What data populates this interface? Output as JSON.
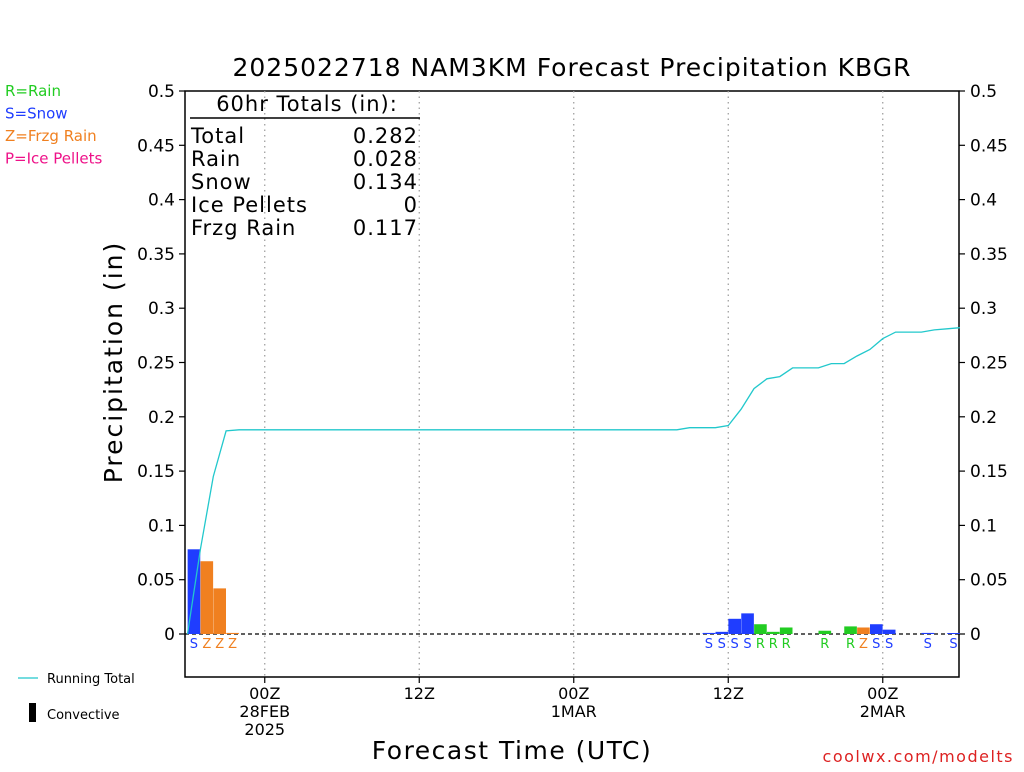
{
  "colors": {
    "rain": "#22cc22",
    "snow": "#1f3dff",
    "frzg_rain": "#f08020",
    "ice_pellets": "#ee1188",
    "running_total": "#22c8cc",
    "watermark": "#dd2222",
    "grid": "#999999"
  },
  "legend_types": [
    {
      "label": "R=Rain",
      "color": "#22cc22"
    },
    {
      "label": "S=Snow",
      "color": "#1f3dff"
    },
    {
      "label": "Z=Frzg Rain",
      "color": "#f08020"
    },
    {
      "label": "P=Ice Pellets",
      "color": "#ee1188"
    }
  ],
  "legend_bottom": {
    "running_total": "Running Total",
    "convective": "Convective"
  },
  "totals_box": {
    "title": "60hr Totals (in):",
    "rows": [
      {
        "label": "Total",
        "value": "0.282"
      },
      {
        "label": "Rain",
        "value": "0.028"
      },
      {
        "label": "Snow",
        "value": "0.134"
      },
      {
        "label": "Ice Pellets",
        "value": "0"
      },
      {
        "label": "Frzg Rain",
        "value": "0.117"
      }
    ]
  },
  "watermark": "coolwx.com/modelts",
  "chart_data": {
    "type": "bar",
    "title": "2025022718 NAM3KM Forecast Precipitation KBGR",
    "xlabel": "Forecast Time (UTC)",
    "ylabel": "Precipitation (in)",
    "ylim": [
      0,
      0.5
    ],
    "yticks": [
      0,
      0.05,
      0.1,
      0.15,
      0.2,
      0.25,
      0.3,
      0.35,
      0.4,
      0.45,
      0.5
    ],
    "ytick_labels": [
      "0",
      "0.05",
      "0.1",
      "0.15",
      "0.2",
      "0.25",
      "0.3",
      "0.35",
      "0.4",
      "0.45",
      "0.5"
    ],
    "xlim_forecast_hours": [
      0,
      60
    ],
    "xticks": [
      {
        "hour": 6,
        "lines": [
          "00Z",
          "28FEB",
          "2025"
        ]
      },
      {
        "hour": 18,
        "lines": [
          "12Z"
        ]
      },
      {
        "hour": 30,
        "lines": [
          "00Z",
          "1MAR"
        ]
      },
      {
        "hour": 42,
        "lines": [
          "12Z"
        ]
      },
      {
        "hour": 54,
        "lines": [
          "00Z",
          "2MAR"
        ]
      }
    ],
    "grid": "vertical dotted at tick times",
    "bars": [
      {
        "hour": 1,
        "value": 0.078,
        "type": "S"
      },
      {
        "hour": 2,
        "value": 0.067,
        "type": "Z"
      },
      {
        "hour": 3,
        "value": 0.042,
        "type": "Z"
      },
      {
        "hour": 4,
        "value": 0.001,
        "type": "Z"
      },
      {
        "hour": 41,
        "value": 0.001,
        "type": "S"
      },
      {
        "hour": 42,
        "value": 0.002,
        "type": "S"
      },
      {
        "hour": 43,
        "value": 0.014,
        "type": "S"
      },
      {
        "hour": 44,
        "value": 0.019,
        "type": "S"
      },
      {
        "hour": 45,
        "value": 0.009,
        "type": "R"
      },
      {
        "hour": 46,
        "value": 0.002,
        "type": "R"
      },
      {
        "hour": 47,
        "value": 0.006,
        "type": "R"
      },
      {
        "hour": 50,
        "value": 0.003,
        "type": "R"
      },
      {
        "hour": 52,
        "value": 0.007,
        "type": "R"
      },
      {
        "hour": 53,
        "value": 0.006,
        "type": "Z"
      },
      {
        "hour": 54,
        "value": 0.009,
        "type": "S"
      },
      {
        "hour": 55,
        "value": 0.004,
        "type": "S"
      },
      {
        "hour": 58,
        "value": 0.001,
        "type": "S"
      },
      {
        "hour": 60,
        "value": 0.0005,
        "type": "S"
      }
    ],
    "running_total": {
      "hours": [
        0,
        1,
        2,
        3,
        4,
        5,
        10,
        20,
        30,
        38,
        39,
        40,
        41,
        42,
        43,
        44,
        45,
        46,
        47,
        48,
        49,
        50,
        51,
        52,
        53,
        54,
        55,
        56,
        57,
        58,
        59,
        60
      ],
      "values": [
        0.0,
        0.078,
        0.145,
        0.187,
        0.188,
        0.188,
        0.188,
        0.188,
        0.188,
        0.188,
        0.19,
        0.19,
        0.19,
        0.192,
        0.207,
        0.226,
        0.235,
        0.237,
        0.245,
        0.245,
        0.245,
        0.249,
        0.249,
        0.256,
        0.262,
        0.272,
        0.278,
        0.278,
        0.278,
        0.28,
        0.281,
        0.282
      ]
    }
  }
}
